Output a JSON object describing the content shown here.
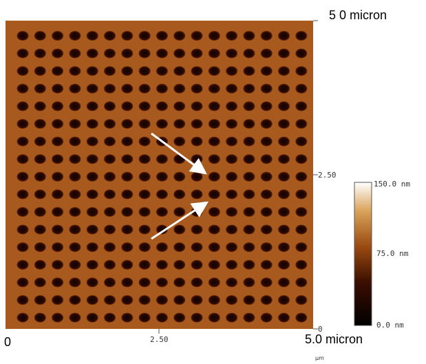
{
  "image": {
    "top_label": "5 0 micron",
    "right_axis": {
      "mid": "2.50",
      "bottom": "0"
    },
    "bottom_axis": {
      "start": "0",
      "mid": "2.50",
      "end": "5.0 micron",
      "unit": "µm"
    },
    "colorbar": {
      "top": "150.0 nm",
      "mid": "75.0 nm",
      "bottom": "0.0 nm"
    }
  }
}
